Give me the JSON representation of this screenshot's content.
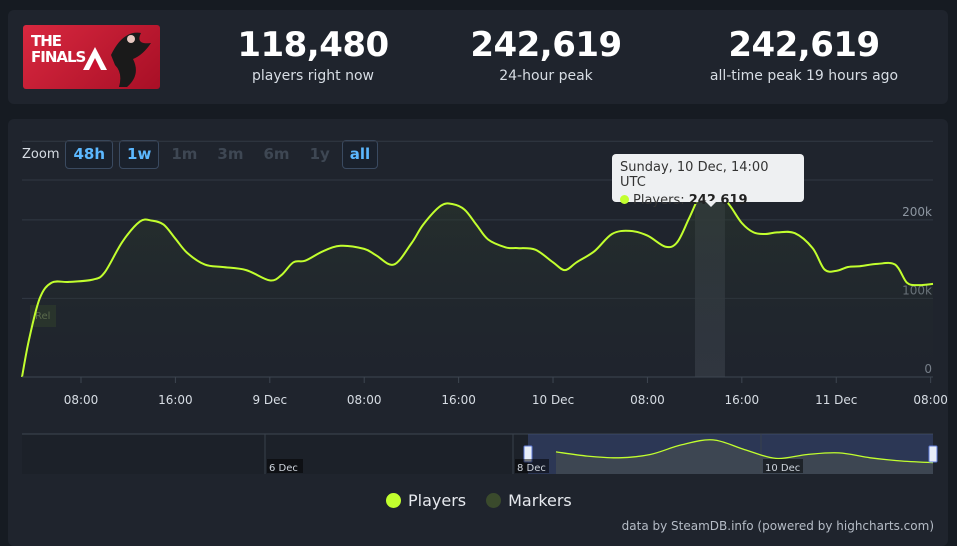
{
  "logo": {
    "text": "THE\nFINALS"
  },
  "stats": [
    {
      "value": "118,480",
      "label": "players right now"
    },
    {
      "value": "242,619",
      "label": "24-hour peak"
    },
    {
      "value": "242,619",
      "label": "all-time peak 19 hours ago"
    }
  ],
  "zoom": {
    "label": "Zoom",
    "buttons": [
      {
        "label": "48h",
        "active": true
      },
      {
        "label": "1w",
        "active": true
      },
      {
        "label": "1m",
        "active": false
      },
      {
        "label": "3m",
        "active": false
      },
      {
        "label": "6m",
        "active": false
      },
      {
        "label": "1y",
        "active": false
      },
      {
        "label": "all",
        "active": true
      }
    ]
  },
  "tooltip": {
    "title": "Sunday, 10 Dec, 14:00 UTC",
    "series_label": "Players: ",
    "value_text": "242 619"
  },
  "legend": [
    {
      "label": "Players",
      "color": "#c2ff2e"
    },
    {
      "label": "Markers",
      "color": "#3a4a2c"
    }
  ],
  "marker_label": "Rel",
  "credits": "data by SteamDB.info (powered by highcharts.com)",
  "navigator": {
    "labels": [
      "6 Dec",
      "8 Dec",
      "10 Dec"
    ]
  },
  "chart_data": {
    "type": "line",
    "ylim": [
      0,
      280000
    ],
    "yticks": [
      {
        "value": 0,
        "label": "0"
      },
      {
        "value": 100000,
        "label": "100k"
      },
      {
        "value": 200000,
        "label": "200k"
      }
    ],
    "xticks": [
      {
        "t": 8,
        "label": "08:00"
      },
      {
        "t": 16,
        "label": "16:00"
      },
      {
        "t": 24,
        "label": "9 Dec"
      },
      {
        "t": 32,
        "label": "08:00"
      },
      {
        "t": 40,
        "label": "16:00"
      },
      {
        "t": 48,
        "label": "10 Dec"
      },
      {
        "t": 56,
        "label": "08:00"
      },
      {
        "t": 64,
        "label": "16:00"
      },
      {
        "t": 72,
        "label": "11 Dec"
      },
      {
        "t": 80,
        "label": "08:00"
      }
    ],
    "xlim": [
      3,
      80.2
    ],
    "series": [
      {
        "name": "Players",
        "color": "#c2ff2e",
        "x": [
          3,
          3.6,
          4.5,
          5.5,
          7,
          9,
          10,
          11.5,
          13,
          14,
          15,
          16,
          17,
          18.5,
          20,
          22,
          24,
          25,
          26,
          27,
          28.5,
          30,
          32,
          33,
          34.5,
          36,
          37,
          38.5,
          39.5,
          40.5,
          41.5,
          42.5,
          44,
          45,
          46.5,
          48,
          49,
          50,
          51.5,
          53,
          54.5,
          56,
          57.5,
          58.5,
          59.5,
          60.5,
          61.3,
          62,
          63,
          64,
          65,
          66,
          67,
          68.5,
          70,
          71,
          72,
          73,
          74,
          75.5,
          77,
          78,
          79,
          80.2
        ],
        "y": [
          0,
          48000,
          100000,
          120000,
          121000,
          124000,
          133000,
          172000,
          198000,
          199000,
          194000,
          176000,
          158000,
          143000,
          140000,
          136000,
          123000,
          130000,
          146000,
          148000,
          160000,
          167000,
          163000,
          155000,
          143000,
          170000,
          194000,
          218000,
          220000,
          213000,
          194000,
          175000,
          165000,
          164000,
          162000,
          146000,
          136000,
          146000,
          160000,
          182000,
          186000,
          180000,
          166000,
          171000,
          201000,
          233000,
          242619,
          236000,
          218000,
          196000,
          184000,
          182000,
          184000,
          183000,
          164000,
          137000,
          135000,
          140000,
          141000,
          144000,
          143000,
          120000,
          117000,
          118480
        ]
      }
    ],
    "highlight": {
      "x": 61.3,
      "y": 242619
    },
    "navigator": {
      "y": [
        132,
        138,
        140,
        139,
        137,
        141,
        160,
        165,
        145,
        135,
        158,
        180,
        165,
        143,
        150,
        170,
        182,
        168,
        155,
        150,
        160,
        190,
        205,
        175,
        148,
        160,
        165,
        150,
        140,
        135
      ]
    }
  }
}
